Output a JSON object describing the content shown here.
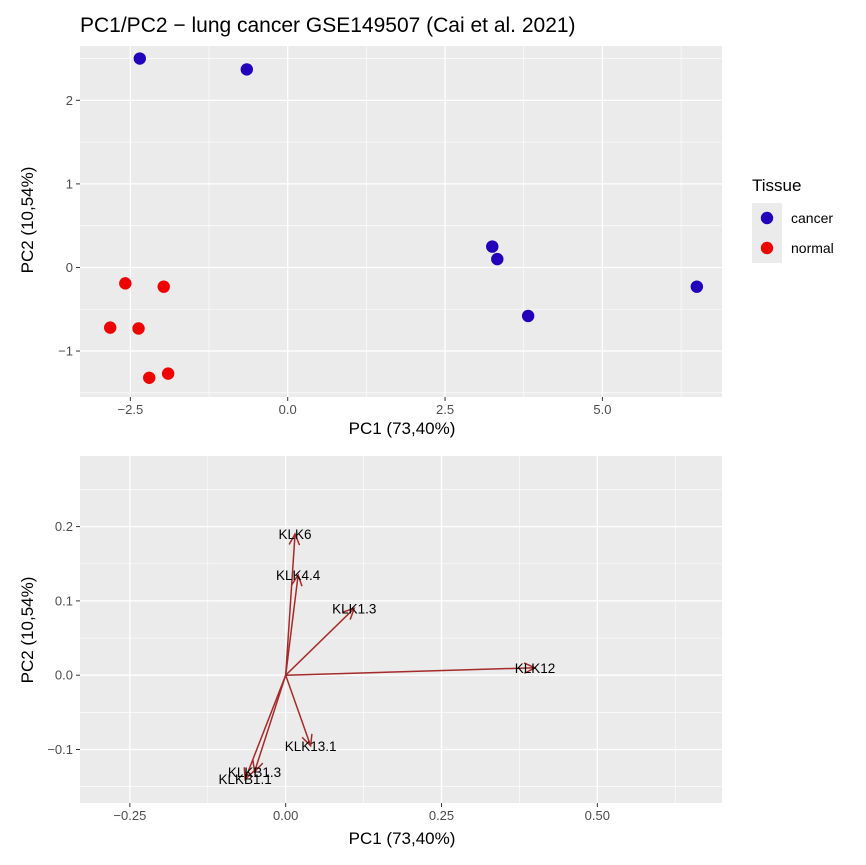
{
  "chart_data": [
    {
      "type": "scatter",
      "title": "PC1/PC2 − lung cancer GSE149507 (Cai et al. 2021)",
      "xlabel": "PC1 (73,40%)",
      "ylabel": "PC2 (10,54%)",
      "xlim": [
        -3.3,
        6.9
      ],
      "ylim": [
        -1.55,
        2.65
      ],
      "x_ticks": [
        -2.5,
        0.0,
        2.5,
        5.0
      ],
      "x_tick_labels": [
        "−2.5",
        "0.0",
        "2.5",
        "5.0"
      ],
      "y_ticks": [
        -1,
        0,
        1,
        2
      ],
      "y_tick_labels": [
        "−1",
        "0",
        "1",
        "2"
      ],
      "grid": true,
      "legend_position": "right",
      "legend_title": "Tissue",
      "series": [
        {
          "name": "cancer",
          "color": "#2200bb",
          "points": [
            {
              "x": -2.35,
              "y": 2.5
            },
            {
              "x": -0.65,
              "y": 2.37
            },
            {
              "x": 3.25,
              "y": 0.25
            },
            {
              "x": 3.33,
              "y": 0.1
            },
            {
              "x": 3.82,
              "y": -0.58
            },
            {
              "x": 6.5,
              "y": -0.23
            }
          ]
        },
        {
          "name": "normal",
          "color": "#ee0000",
          "points": [
            {
              "x": -2.58,
              "y": -0.19
            },
            {
              "x": -1.97,
              "y": -0.23
            },
            {
              "x": -2.82,
              "y": -0.72
            },
            {
              "x": -2.37,
              "y": -0.73
            },
            {
              "x": -2.2,
              "y": -1.32
            },
            {
              "x": -1.9,
              "y": -1.27
            }
          ]
        }
      ]
    },
    {
      "type": "biplot_loadings",
      "xlabel": "PC1 (73,40%)",
      "ylabel": "PC2 (10,54%)",
      "xlim": [
        -0.33,
        0.7
      ],
      "ylim": [
        -0.172,
        0.295
      ],
      "x_ticks": [
        -0.25,
        0.0,
        0.25,
        0.5
      ],
      "x_tick_labels": [
        "−0.25",
        "0.00",
        "0.25",
        "0.50"
      ],
      "y_ticks": [
        -0.1,
        0.0,
        0.1,
        0.2
      ],
      "y_tick_labels": [
        "−0.1",
        "0.0",
        "0.1",
        "0.2"
      ],
      "grid": true,
      "arrow_color": "#a52a2a",
      "vectors": [
        {
          "label": "KLK6",
          "x": 0.015,
          "y": 0.19
        },
        {
          "label": "KLK4.4",
          "x": 0.02,
          "y": 0.135
        },
        {
          "label": "KLK1.3",
          "x": 0.11,
          "y": 0.09
        },
        {
          "label": "KLK12",
          "x": 0.4,
          "y": 0.01
        },
        {
          "label": "KLK13.1",
          "x": 0.04,
          "y": -0.095
        },
        {
          "label": "KLKB1.3",
          "x": -0.05,
          "y": -0.13
        },
        {
          "label": "KLKB1.1",
          "x": -0.065,
          "y": -0.14
        }
      ]
    }
  ]
}
